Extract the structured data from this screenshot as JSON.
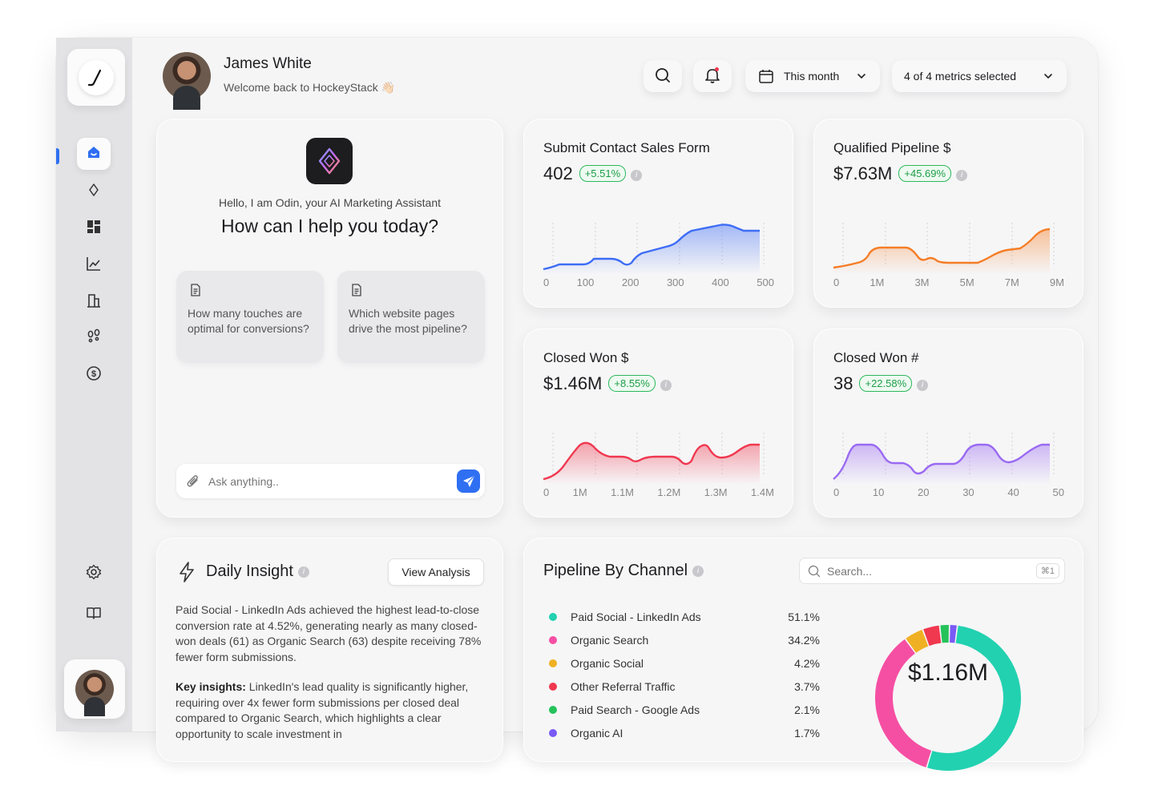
{
  "user": {
    "name": "James White",
    "welcome": "Welcome back to HockeyStack 👋🏻"
  },
  "header": {
    "date_filter": "This month",
    "metrics_filter": "4 of 4 metrics selected"
  },
  "assistant": {
    "greeting": "Hello, I am Odin, your AI Marketing Assistant",
    "question": "How can I help you today?",
    "suggestions": [
      "How many touches are optimal for conversions?",
      "Which website pages drive the most pipeline?"
    ],
    "input_placeholder": "Ask anything.."
  },
  "metrics": [
    {
      "title": "Submit Contact Sales Form",
      "value": "402",
      "change": "+5.51%",
      "color": "#3e6df5",
      "ticks": [
        "0",
        "100",
        "200",
        "300",
        "400",
        "500"
      ]
    },
    {
      "title": "Qualified Pipeline $",
      "value": "$7.63M",
      "change": "+45.69%",
      "color": "#f57d26",
      "ticks": [
        "0",
        "1M",
        "3M",
        "5M",
        "7M",
        "9M"
      ]
    },
    {
      "title": "Closed Won $",
      "value": "$1.46M",
      "change": "+8.55%",
      "color": "#f0384f",
      "ticks": [
        "0",
        "1M",
        "1.1M",
        "1.2M",
        "1.3M",
        "1.4M"
      ]
    },
    {
      "title": "Closed Won #",
      "value": "38",
      "change": "+22.58%",
      "color": "#9a6af2",
      "ticks": [
        "0",
        "10",
        "20",
        "30",
        "40",
        "50"
      ]
    }
  ],
  "insight": {
    "title": "Daily Insight",
    "button": "View Analysis",
    "paragraph": "Paid Social - LinkedIn Ads achieved the highest lead-to-close conversion rate at 4.52%, generating nearly as many closed-won deals (61) as Organic Search (63) despite receiving 78% fewer form submissions.",
    "key_label": "Key insights:",
    "key_text": " LinkedIn's lead quality is significantly higher, requiring over 4x fewer form submissions per closed deal compared to Organic Search, which highlights a clear opportunity to scale investment in"
  },
  "pipeline": {
    "title": "Pipeline By Channel",
    "search_placeholder": "Search...",
    "shortcut": "⌘1",
    "total": "$1.16M",
    "channels": [
      {
        "name": "Paid Social - LinkedIn Ads",
        "pct": "51.1%",
        "value": 51.1,
        "color": "#22d1b0"
      },
      {
        "name": "Organic Search",
        "pct": "34.2%",
        "value": 34.2,
        "color": "#f54fa3"
      },
      {
        "name": "Organic Social",
        "pct": "4.2%",
        "value": 4.2,
        "color": "#f0b023"
      },
      {
        "name": "Other Referral Traffic",
        "pct": "3.7%",
        "value": 3.7,
        "color": "#f0384f"
      },
      {
        "name": "Paid Search - Google Ads",
        "pct": "2.1%",
        "value": 2.1,
        "color": "#25c25a"
      },
      {
        "name": "Organic AI",
        "pct": "1.7%",
        "value": 1.7,
        "color": "#7a5af5"
      }
    ]
  },
  "colors": {
    "accent": "#2f6ff2",
    "positive": "#1e9e48"
  },
  "icons": {
    "sidebar": [
      "home-icon",
      "diamond-icon",
      "dashboard-icon",
      "line-chart-icon",
      "building-icon",
      "footsteps-icon",
      "dollar-icon",
      "settings-icon",
      "book-icon"
    ]
  }
}
